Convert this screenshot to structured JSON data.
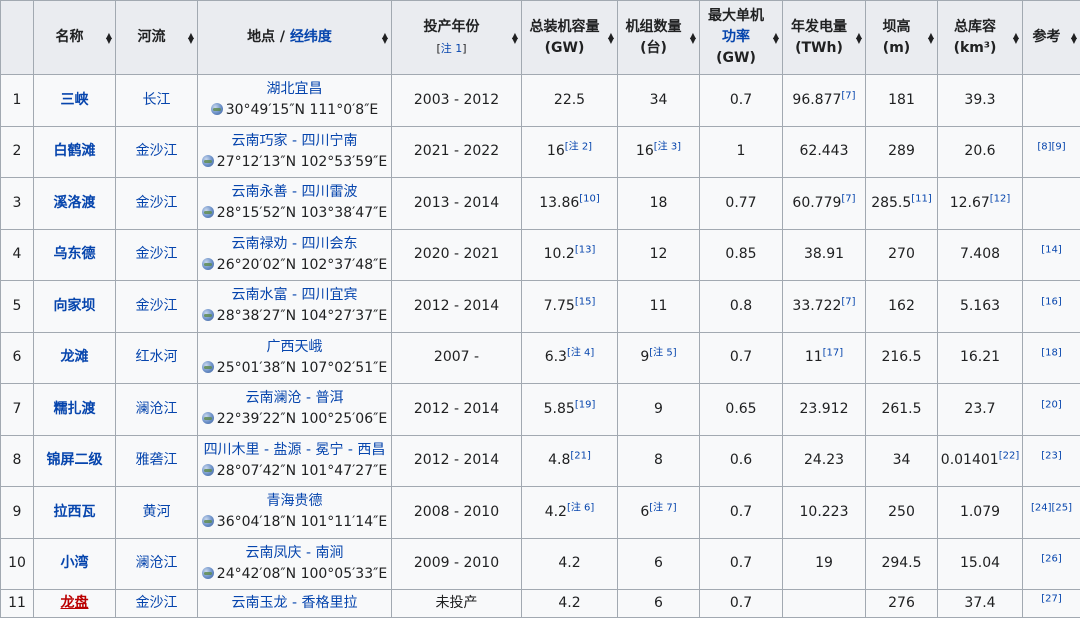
{
  "headers": {
    "index": "",
    "name": "名称",
    "river": "河流",
    "location_prefix": "地点 / ",
    "location_link": "经纬度",
    "year": "投产年份",
    "year_note": "注 1",
    "capacity_l1": "总装机容量",
    "capacity_l2": "(GW)",
    "units_l1": "机组数量",
    "units_l2": "(台)",
    "max_unit_l1": "最大单机",
    "max_unit_l2": "功率",
    "max_unit_l3": "(GW)",
    "generation_l1": "年发电量",
    "generation_l2": "(TWh)",
    "height_l1": "坝高",
    "height_l2": "(m)",
    "storage_l1": "总库容",
    "storage_l2": "(km³)",
    "ref": "参考"
  },
  "rows": [
    {
      "index": "1",
      "name": "三峡",
      "river": "长江",
      "place": "湖北宜昌",
      "coord": "30°49′15″N 111°0′8″E",
      "year": "2003 - 2012",
      "capacity": "22.5",
      "capacity_sup": "",
      "units": "34",
      "units_sup": "",
      "max_unit": "0.7",
      "generation": "96.877",
      "generation_sup": "[7]",
      "height": "181",
      "height_sup": "",
      "storage": "39.3",
      "storage_sup": "",
      "ref": ""
    },
    {
      "index": "2",
      "name": "白鹤滩",
      "river": "金沙江",
      "place": "云南巧家 - 四川宁南",
      "coord": "27°12′13″N 102°53′59″E",
      "year": "2021 - 2022",
      "capacity": "16",
      "capacity_sup": "[注 2]",
      "units": "16",
      "units_sup": "[注 3]",
      "max_unit": "1",
      "generation": "62.443",
      "generation_sup": "",
      "height": "289",
      "height_sup": "",
      "storage": "20.6",
      "storage_sup": "",
      "ref": "[8][9]"
    },
    {
      "index": "3",
      "name": "溪洛渡",
      "river": "金沙江",
      "place": "云南永善 - 四川雷波",
      "coord": "28°15′52″N 103°38′47″E",
      "year": "2013 - 2014",
      "capacity": "13.86",
      "capacity_sup": "[10]",
      "units": "18",
      "units_sup": "",
      "max_unit": "0.77",
      "generation": "60.779",
      "generation_sup": "[7]",
      "height": "285.5",
      "height_sup": "[11]",
      "storage": "12.67",
      "storage_sup": "[12]",
      "ref": ""
    },
    {
      "index": "4",
      "name": "乌东德",
      "river": "金沙江",
      "place": "云南禄劝 - 四川会东",
      "coord": "26°20′02″N 102°37′48″E",
      "year": "2020 - 2021",
      "capacity": "10.2",
      "capacity_sup": "[13]",
      "units": "12",
      "units_sup": "",
      "max_unit": "0.85",
      "generation": "38.91",
      "generation_sup": "",
      "height": "270",
      "height_sup": "",
      "storage": "7.408",
      "storage_sup": "",
      "ref": "[14]"
    },
    {
      "index": "5",
      "name": "向家坝",
      "river": "金沙江",
      "place": "云南水富 - 四川宜宾",
      "coord": "28°38′27″N 104°27′37″E",
      "year": "2012 - 2014",
      "capacity": "7.75",
      "capacity_sup": "[15]",
      "units": "11",
      "units_sup": "",
      "max_unit": "0.8",
      "generation": "33.722",
      "generation_sup": "[7]",
      "height": "162",
      "height_sup": "",
      "storage": "5.163",
      "storage_sup": "",
      "ref": "[16]"
    },
    {
      "index": "6",
      "name": "龙滩",
      "river": "红水河",
      "place": "广西天峨",
      "coord": "25°01′38″N 107°02′51″E",
      "year": "2007 -",
      "capacity": "6.3",
      "capacity_sup": "[注 4]",
      "units": "9",
      "units_sup": "[注 5]",
      "max_unit": "0.7",
      "generation": "11",
      "generation_sup": "[17]",
      "height": "216.5",
      "height_sup": "",
      "storage": "16.21",
      "storage_sup": "",
      "ref": "[18]"
    },
    {
      "index": "7",
      "name": "糯扎渡",
      "river": "澜沧江",
      "place": "云南澜沧 - 普洱",
      "coord": "22°39′22″N 100°25′06″E",
      "year": "2012 - 2014",
      "capacity": "5.85",
      "capacity_sup": "[19]",
      "units": "9",
      "units_sup": "",
      "max_unit": "0.65",
      "generation": "23.912",
      "generation_sup": "",
      "height": "261.5",
      "height_sup": "",
      "storage": "23.7",
      "storage_sup": "",
      "ref": "[20]"
    },
    {
      "index": "8",
      "name": "锦屏二级",
      "river": "雅砻江",
      "place": "四川木里 - 盐源 - 冕宁 - 西昌",
      "coord": "28°07′42″N 101°47′27″E",
      "year": "2012 - 2014",
      "capacity": "4.8",
      "capacity_sup": "[21]",
      "units": "8",
      "units_sup": "",
      "max_unit": "0.6",
      "generation": "24.23",
      "generation_sup": "",
      "height": "34",
      "height_sup": "",
      "storage": "0.01401",
      "storage_sup": "[22]",
      "ref": "[23]"
    },
    {
      "index": "9",
      "name": "拉西瓦",
      "river": "黄河",
      "place": "青海贵德",
      "coord": "36°04′18″N 101°11′14″E",
      "year": "2008 - 2010",
      "capacity": "4.2",
      "capacity_sup": "[注 6]",
      "units": "6",
      "units_sup": "[注 7]",
      "max_unit": "0.7",
      "generation": "10.223",
      "generation_sup": "",
      "height": "250",
      "height_sup": "",
      "storage": "1.079",
      "storage_sup": "",
      "ref": "[24][25]"
    },
    {
      "index": "10",
      "name": "小湾",
      "river": "澜沧江",
      "place": "云南凤庆 - 南涧",
      "coord": "24°42′08″N 100°05′33″E",
      "year": "2009 - 2010",
      "capacity": "4.2",
      "capacity_sup": "",
      "units": "6",
      "units_sup": "",
      "max_unit": "0.7",
      "generation": "19",
      "generation_sup": "",
      "height": "294.5",
      "height_sup": "",
      "storage": "15.04",
      "storage_sup": "",
      "ref": "[26]"
    },
    {
      "index": "11",
      "name": "龙盘",
      "name_red": true,
      "river": "金沙江",
      "place": "云南玉龙 - 香格里拉",
      "coord": "",
      "year": "未投产",
      "capacity": "4.2",
      "capacity_sup": "",
      "units": "6",
      "units_sup": "",
      "max_unit": "0.7",
      "generation": "",
      "generation_sup": "",
      "height": "276",
      "height_sup": "",
      "storage": "37.4",
      "storage_sup": "",
      "ref": "[27]"
    }
  ],
  "colors": {
    "link": "#0645ad",
    "redlink": "#ba0000",
    "header_bg": "#eaecf0",
    "cell_bg": "#f8f9fa",
    "border": "#a2a9b1"
  },
  "icons": {
    "sort": "sort-arrows-icon",
    "coord": "globe-icon"
  }
}
